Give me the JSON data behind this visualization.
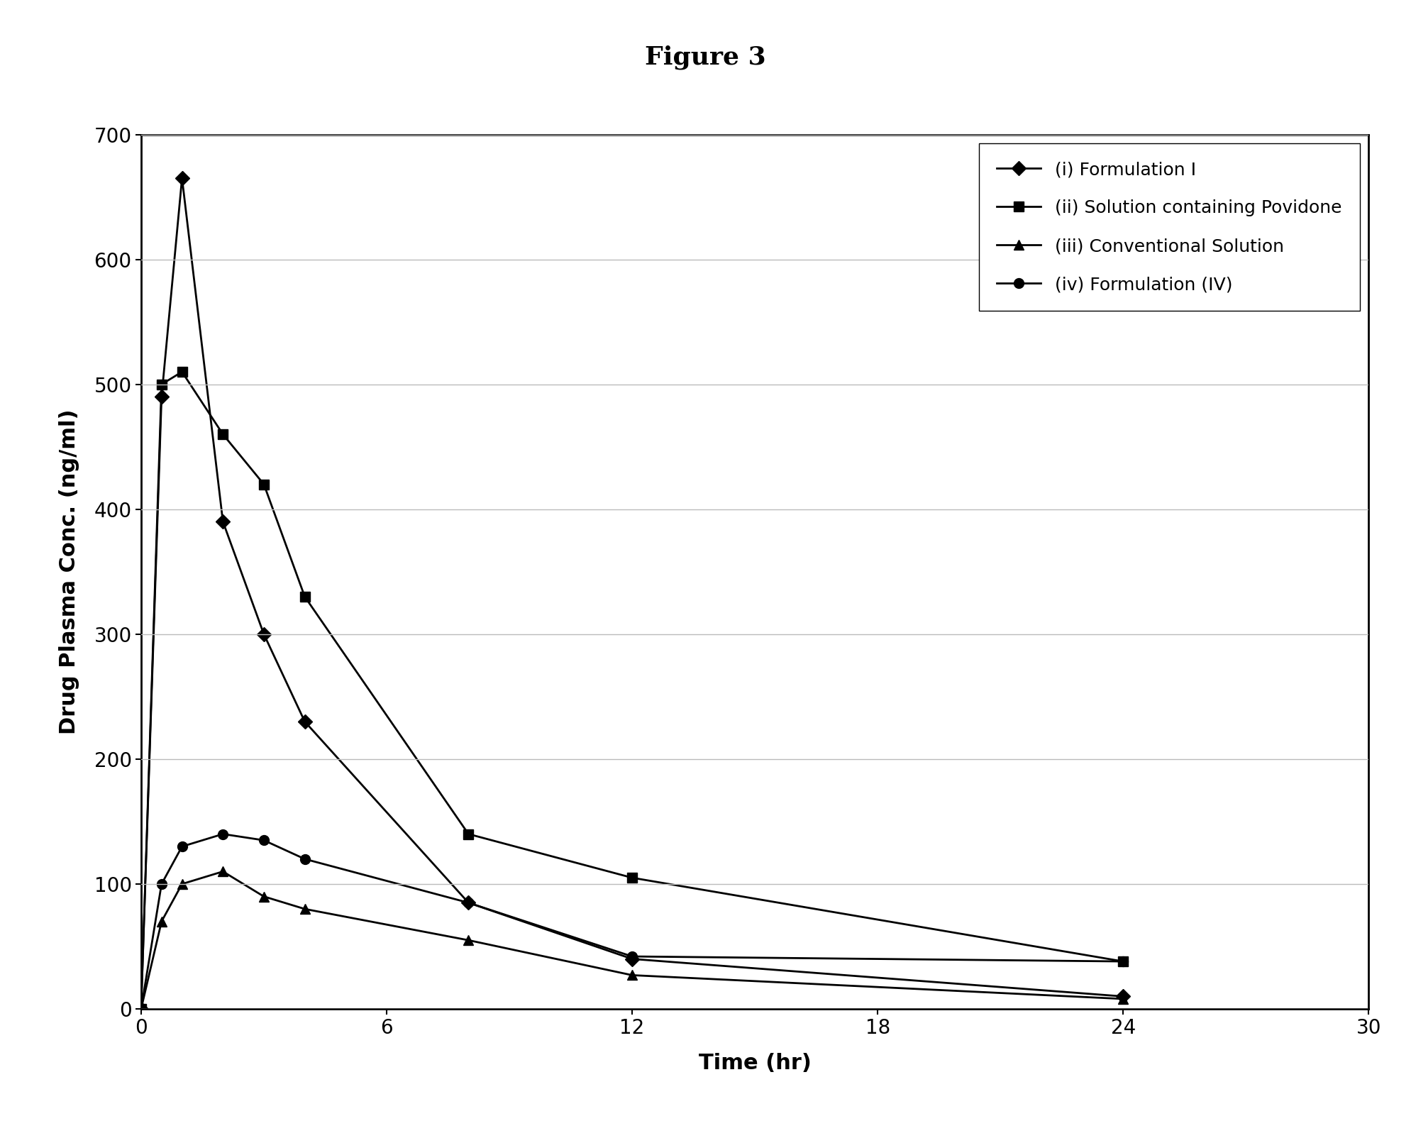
{
  "title": "Figure 3",
  "xlabel": "Time (hr)",
  "ylabel": "Drug Plasma Conc. (ng/ml)",
  "xlim": [
    0,
    30
  ],
  "ylim": [
    0,
    700
  ],
  "xticks": [
    0,
    6,
    12,
    18,
    24,
    30
  ],
  "yticks": [
    0,
    100,
    200,
    300,
    400,
    500,
    600,
    700
  ],
  "series": [
    {
      "label": "(i) Formulation I",
      "x": [
        0,
        0.5,
        1,
        2,
        3,
        4,
        8,
        12,
        24
      ],
      "y": [
        0,
        490,
        665,
        390,
        300,
        230,
        85,
        40,
        10
      ],
      "marker": "D",
      "color": "#000000",
      "linewidth": 2.0,
      "markersize": 10
    },
    {
      "label": "(ii) Solution containing Povidone",
      "x": [
        0,
        0.5,
        1,
        2,
        3,
        4,
        8,
        12,
        24
      ],
      "y": [
        0,
        500,
        510,
        460,
        420,
        330,
        140,
        105,
        38
      ],
      "marker": "s",
      "color": "#000000",
      "linewidth": 2.0,
      "markersize": 10
    },
    {
      "label": "(iii) Conventional Solution",
      "x": [
        0,
        0.5,
        1,
        2,
        3,
        4,
        8,
        12,
        24
      ],
      "y": [
        0,
        70,
        100,
        110,
        90,
        80,
        55,
        27,
        8
      ],
      "marker": "^",
      "color": "#000000",
      "linewidth": 2.0,
      "markersize": 10
    },
    {
      "label": "(iv) Formulation (IV)",
      "x": [
        0,
        0.5,
        1,
        2,
        3,
        4,
        8,
        12,
        24
      ],
      "y": [
        0,
        100,
        130,
        140,
        135,
        120,
        85,
        42,
        38
      ],
      "marker": "o",
      "color": "#000000",
      "linewidth": 2.0,
      "markersize": 10
    }
  ],
  "legend_loc": "upper right",
  "background_color": "#ffffff",
  "grid_color": "#bbbbbb",
  "title_fontsize": 26,
  "label_fontsize": 22,
  "tick_fontsize": 20,
  "legend_fontsize": 18
}
